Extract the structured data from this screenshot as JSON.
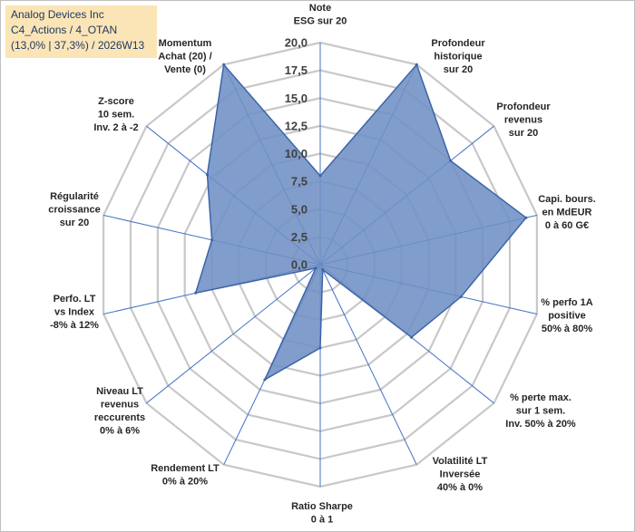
{
  "header": {
    "company": "Analog Devices Inc",
    "portfolio": "C4_Actions / 4_OTAN",
    "stats": "(13,0% | 37,3%) / 2026W13"
  },
  "colors": {
    "fill": "#6f8fc4",
    "stroke": "#3b64a8",
    "grid": "#c8c8c8",
    "spoke": "#4472c4",
    "info_bg": "#fbe5b6"
  },
  "chart_data": {
    "type": "radar",
    "rlim": [
      0,
      20
    ],
    "ticks": [
      "0,0",
      "2,5",
      "5,0",
      "7,5",
      "10,0",
      "12,5",
      "15,0",
      "17,5",
      "20,0"
    ],
    "axes": [
      {
        "label": [
          "Note",
          "ESG sur 20"
        ],
        "value": 8.0
      },
      {
        "label": [
          "Profondeur",
          "historique",
          "sur 20"
        ],
        "value": 20.0
      },
      {
        "label": [
          "Profondeur",
          "revenus",
          "sur 20"
        ],
        "value": 15.0
      },
      {
        "label": [
          "Capi. bours.",
          "en MdEUR",
          "0 à 60 G€"
        ],
        "value": 19.0
      },
      {
        "label": [
          "% perfo 1A",
          "positive",
          "50% à 80%"
        ],
        "value": 13.0
      },
      {
        "label": [
          "% perte max.",
          "sur 1 sem.",
          "Inv. 50% à 20%"
        ],
        "value": 10.5
      },
      {
        "label": [
          "Volatilité LT",
          "Inversée",
          "40% à 0%"
        ],
        "value": 0.5
      },
      {
        "label": [
          "Ratio Sharpe",
          "0 à 1"
        ],
        "value": 7.5
      },
      {
        "label": [
          "Rendement LT",
          "0% à 20%"
        ],
        "value": 11.5
      },
      {
        "label": [
          "Niveau LT",
          "revenus",
          "reccurents",
          "0% à 6%"
        ],
        "value": 0.5
      },
      {
        "label": [
          "Perfo. LT",
          "vs Index",
          "-8% à 12%"
        ],
        "value": 11.5
      },
      {
        "label": [
          "Régularité",
          "croissance",
          "sur 20"
        ],
        "value": 10.0
      },
      {
        "label": [
          "Z-score",
          "10 sem.",
          "Inv. 2 à -2"
        ],
        "value": 13.0
      },
      {
        "label": [
          "Momentum",
          "Achat (20) /",
          "Vente (0)"
        ],
        "value": 20.0
      }
    ]
  }
}
